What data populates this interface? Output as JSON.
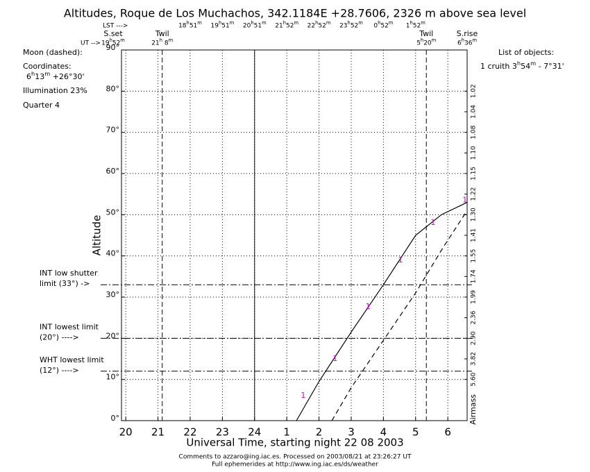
{
  "chart_data": {
    "type": "line",
    "title": "Altitudes, Roque de Los Muchachos, 342.1184E +28.7606, 2326 m above sea level",
    "xlabel": "Universal Time, starting night 22 08 2003",
    "ylabel": "Altitude",
    "xlim": [
      19.867,
      30.6
    ],
    "ylim": [
      0,
      90
    ],
    "xticks": [
      20,
      21,
      22,
      23,
      24,
      {
        "value": 25,
        "label": "1"
      },
      {
        "value": 26,
        "label": "2"
      },
      {
        "value": 27,
        "label": "3"
      },
      {
        "value": 28,
        "label": "4"
      },
      {
        "value": 29,
        "label": "5"
      },
      {
        "value": 30,
        "label": "6"
      }
    ],
    "yticks": [
      {
        "value": 0,
        "label": "0°"
      },
      {
        "value": 10,
        "label": "10°"
      },
      {
        "value": 20,
        "label": "20°"
      },
      {
        "value": 30,
        "label": "30°"
      },
      {
        "value": 40,
        "label": "40°"
      },
      {
        "value": 50,
        "label": "50°"
      },
      {
        "value": 60,
        "label": "60°"
      },
      {
        "value": 70,
        "label": "70°"
      },
      {
        "value": 80,
        "label": "80°"
      },
      {
        "value": 90,
        "label": "90°"
      }
    ],
    "grid": true,
    "airmass_label": "Airmass",
    "airmass_ticks": [
      {
        "value": 80,
        "label": "1.02"
      },
      {
        "value": 75,
        "label": "1.04"
      },
      {
        "value": 70,
        "label": "1.08"
      },
      {
        "value": 65,
        "label": "1.10"
      },
      {
        "value": 60,
        "label": "1.15"
      },
      {
        "value": 55,
        "label": "1.22"
      },
      {
        "value": 50,
        "label": "1.30"
      },
      {
        "value": 45,
        "label": "1.41"
      },
      {
        "value": 40,
        "label": "1.55"
      },
      {
        "value": 35,
        "label": "1.74"
      },
      {
        "value": 30,
        "label": "1.99"
      },
      {
        "value": 25,
        "label": "2.36"
      },
      {
        "value": 20,
        "label": "2.90"
      },
      {
        "value": 15,
        "label": "3.82"
      },
      {
        "value": 10,
        "label": "5.60"
      }
    ],
    "series": [
      {
        "name": "cruith",
        "color": "#000000",
        "dash": "solid",
        "x": [
          25.3,
          26,
          27,
          28,
          28.5,
          29,
          29.8,
          30.6
        ],
        "values": [
          0,
          9.5,
          21.5,
          33,
          39,
          45,
          50,
          53
        ]
      },
      {
        "name": "Moon",
        "color": "#000000",
        "dash": "dashed",
        "x": [
          26.4,
          27,
          28,
          29,
          29.85,
          30.6
        ],
        "values": [
          0,
          8,
          19.5,
          31,
          42,
          51
        ]
      }
    ],
    "object_marks": {
      "text": "1",
      "color": "#cc00cc",
      "x": [
        25.51,
        26.5,
        27.52,
        28.53,
        29.54,
        30.53
      ],
      "values": [
        6.1,
        15,
        27.6,
        38.9,
        48,
        53.5
      ]
    },
    "vlines": [
      {
        "x": 21.133,
        "style": "dashed"
      },
      {
        "x": 24,
        "style": "solid"
      },
      {
        "x": 29.333,
        "style": "dashed"
      }
    ],
    "hlines": [
      {
        "y": 33,
        "lines": [
          "INT low shutter",
          "limit (33°) ->"
        ]
      },
      {
        "y": 20,
        "lines": [
          "INT lowest limit",
          "(20°) ---->"
        ]
      },
      {
        "y": 12,
        "lines": [
          "WHT lowest limit",
          "(12°) ---->"
        ]
      }
    ],
    "lst_label": "LST --->",
    "lst": {
      "ut": [
        22,
        23,
        24,
        25,
        26,
        27,
        28,
        29
      ],
      "labels": [
        "18h51m",
        "19h51m",
        "20h51m",
        "21h52m",
        "22h52m",
        "23h52m",
        "0h52m",
        "1h52m"
      ]
    },
    "ut_label": "UT -->",
    "events": [
      {
        "name": "S.set",
        "time": "19h52m",
        "ut": 19.867
      },
      {
        "name": "Twil",
        "time": "21h 8m",
        "ut": 21.133
      },
      {
        "name": "Twil",
        "time": "5h20m",
        "ut": 29.333
      },
      {
        "name": "S.rise",
        "time": "6h36m",
        "ut": 30.6
      }
    ],
    "moon_info": [
      "Moon (dashed):",
      "Coordinates:",
      "6h13m  +26°30'",
      "Illumination  23%",
      "Quarter     4"
    ],
    "objects_title": "List of objects:",
    "objects": [
      "1  cruith   3h54m  -  7°31'"
    ],
    "footer": [
      "Comments to azzaro@ing.iac.es. Processed on 2003/08/21 at 23:26:27 UT",
      "Full ephemerides at http://www.ing.iac.es/ds/weather"
    ]
  }
}
